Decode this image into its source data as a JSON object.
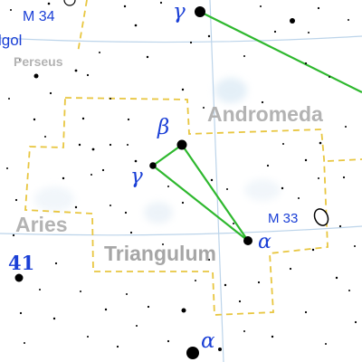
{
  "map": {
    "title": "Triangulum",
    "neighbors": {
      "andromeda": "Andromeda",
      "aries": "Aries",
      "perseus": "Perseus"
    },
    "star_labels": {
      "beta_tri": "β",
      "gamma_tri": "γ",
      "alpha_tri": "α",
      "gamma_and": "γ",
      "alpha_ari": "α",
      "algol": "lgol",
      "forty_one_ari": "41"
    },
    "deep_sky": {
      "m33": "M 33",
      "m34": "M 34"
    },
    "colors": {
      "label_blue": "#1a3fd6",
      "stick_green": "#2eb82e",
      "boundary_gold": "#e8c640",
      "grid_blue": "#bcd4ea",
      "name_gray": "#a6a6a6"
    }
  }
}
